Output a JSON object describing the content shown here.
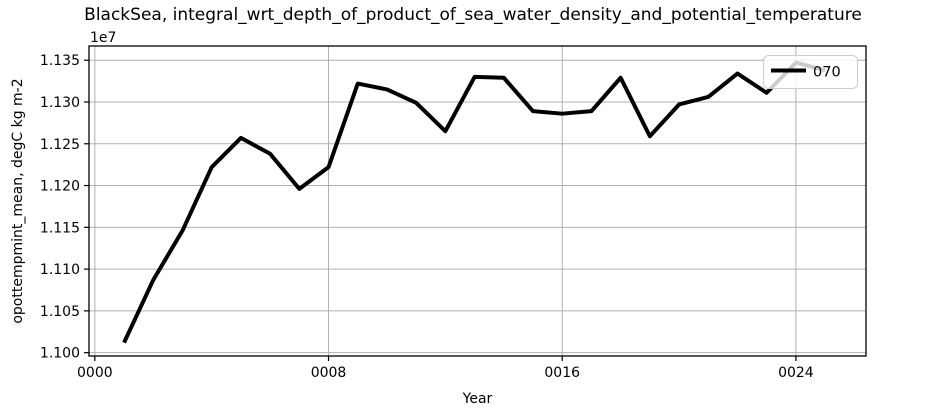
{
  "chart_data": {
    "type": "line",
    "title": "BlackSea, integral_wrt_depth_of_product_of_sea_water_density_and_potential_temperature",
    "xlabel": "Year",
    "ylabel": "opottempmint_mean, degC kg m-2",
    "offset_text": "1e7",
    "grid": true,
    "legend": {
      "position": "upper right",
      "entries": [
        {
          "label": "070",
          "color": "#000000"
        }
      ]
    },
    "xlim": [
      -0.2,
      26.4
    ],
    "ylim": [
      1.0996,
      1.1367
    ],
    "x_ticks": {
      "values": [
        0,
        8,
        16,
        24
      ],
      "labels": [
        "0000",
        "0008",
        "0016",
        "0024"
      ]
    },
    "y_ticks": {
      "values": [
        1.1,
        1.105,
        1.11,
        1.115,
        1.12,
        1.125,
        1.13,
        1.135
      ],
      "labels": [
        "1.100",
        "1.105",
        "1.110",
        "1.115",
        "1.120",
        "1.125",
        "1.130",
        "1.135"
      ]
    },
    "value_multiplier": "1e7",
    "series": [
      {
        "name": "070",
        "color": "#000000",
        "linewidth": 4,
        "x": [
          1,
          2,
          3,
          4,
          5,
          6,
          7,
          8,
          9,
          10,
          11,
          12,
          13,
          14,
          15,
          16,
          17,
          18,
          19,
          20,
          21,
          22,
          23,
          24,
          25
        ],
        "y": [
          1.1012,
          1.1087,
          1.1146,
          1.1222,
          1.1257,
          1.1238,
          1.1196,
          1.1222,
          1.1322,
          1.1315,
          1.1299,
          1.1265,
          1.133,
          1.1329,
          1.1289,
          1.1286,
          1.1289,
          1.1329,
          1.1259,
          1.1297,
          1.1306,
          1.1334,
          1.1311,
          1.1347,
          1.1338
        ]
      }
    ]
  },
  "colors": {
    "background": "#ffffff",
    "line": "#000000",
    "grid": "#b0b0b0",
    "spine": "#000000",
    "legend_border": "#cccccc",
    "legend_background": "#ffffff"
  }
}
